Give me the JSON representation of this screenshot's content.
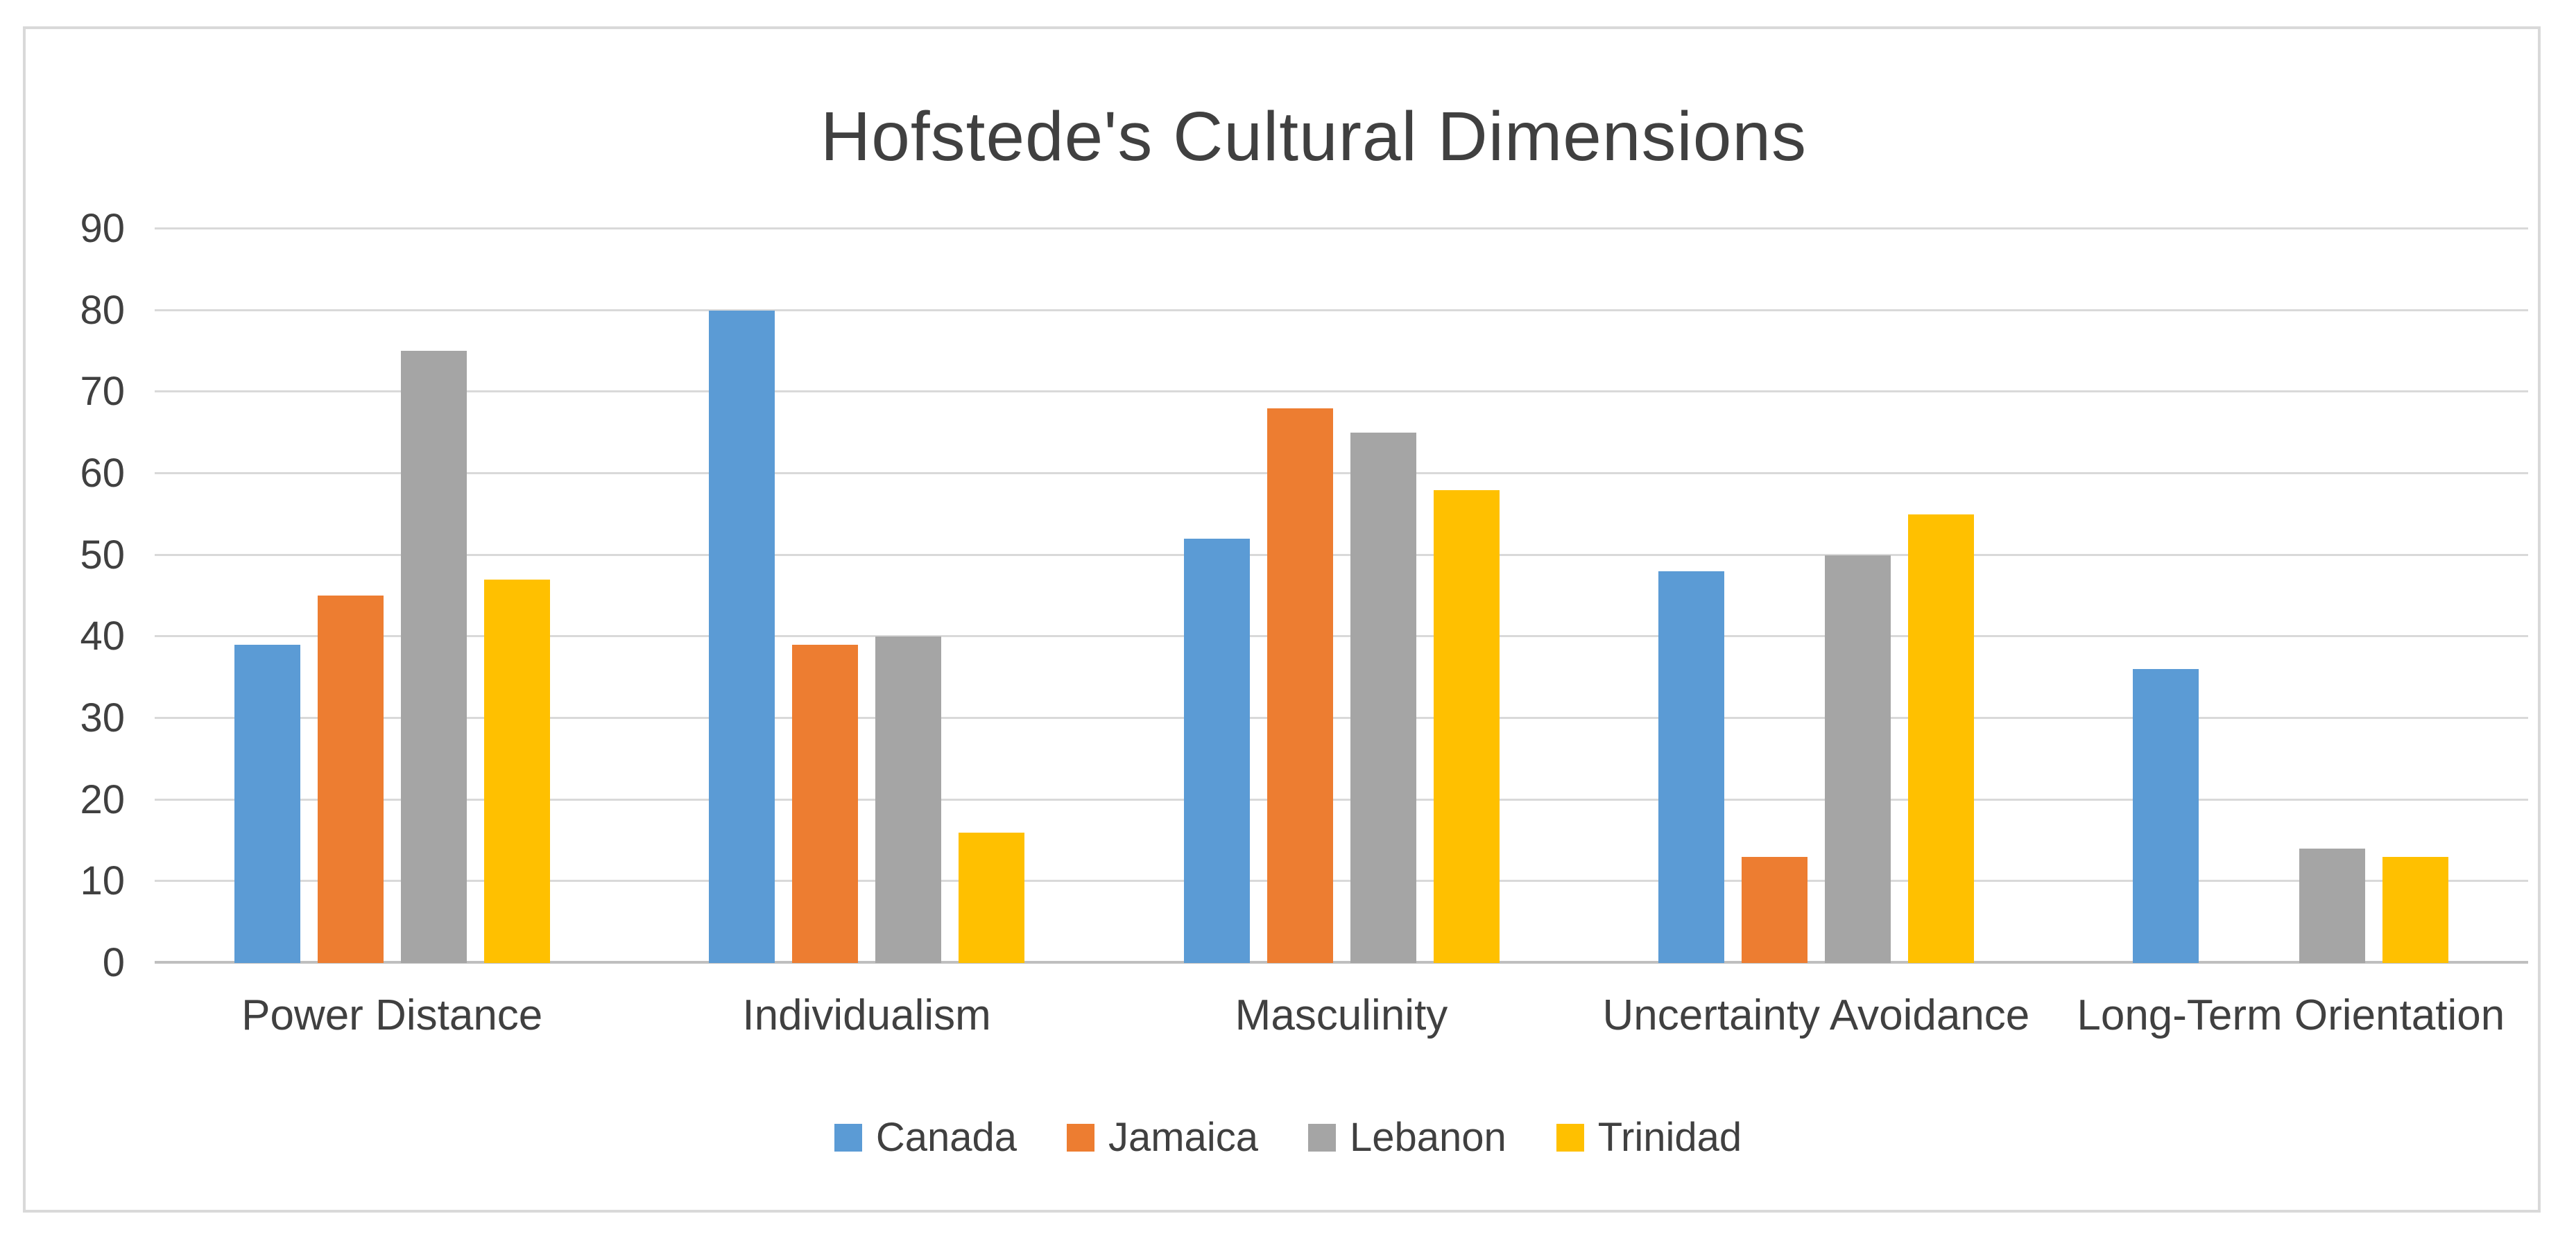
{
  "chart_data": {
    "type": "bar",
    "title": "Hofstede's Cultural Dimensions",
    "categories": [
      "Power Distance",
      "Individualism",
      "Masculinity",
      "Uncertainty Avoidance",
      "Long-Term Orientation"
    ],
    "series": [
      {
        "name": "Canada",
        "color": "#5B9BD5",
        "values": [
          39,
          80,
          52,
          48,
          36
        ]
      },
      {
        "name": "Jamaica",
        "color": "#ED7D31",
        "values": [
          45,
          39,
          68,
          13,
          null
        ]
      },
      {
        "name": "Lebanon",
        "color": "#A5A5A5",
        "values": [
          75,
          40,
          65,
          50,
          14
        ]
      },
      {
        "name": "Trinidad",
        "color": "#FFC000",
        "values": [
          47,
          16,
          58,
          55,
          13
        ]
      }
    ],
    "yaxis": {
      "min": 0,
      "max": 90,
      "step": 10,
      "ticks": [
        0,
        10,
        20,
        30,
        40,
        50,
        60,
        70,
        80,
        90
      ]
    },
    "grid": true,
    "legend_position": "bottom",
    "theme": {
      "gridline_color": "#D9D9D9",
      "axis_line_color": "#BFBFBF",
      "frame_border_color": "#D9D9D9",
      "title_color": "#404040",
      "text_color": "#404040",
      "background_color": "#FFFFFF"
    }
  }
}
